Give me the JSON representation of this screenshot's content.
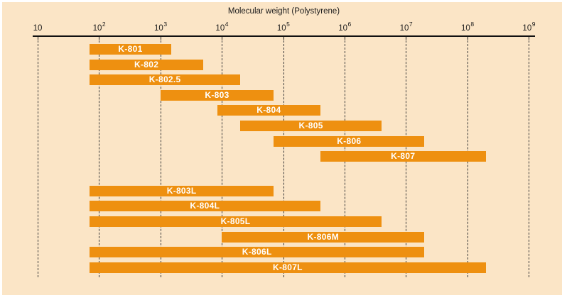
{
  "chart_data": {
    "type": "bar",
    "variant": "horizontal-range",
    "title": "Molecular weight (Polystyrene)",
    "x_axis": {
      "scale": "log10",
      "range": [
        10,
        1000000000
      ],
      "gridlines": "dashed-vertical",
      "ticks": [
        {
          "mantissa": "10",
          "exponent": "",
          "value": 10
        },
        {
          "mantissa": "10",
          "exponent": "2",
          "value": 100
        },
        {
          "mantissa": "10",
          "exponent": "3",
          "value": 1000
        },
        {
          "mantissa": "10",
          "exponent": "4",
          "value": 10000
        },
        {
          "mantissa": "10",
          "exponent": "5",
          "value": 100000
        },
        {
          "mantissa": "10",
          "exponent": "6",
          "value": 1000000
        },
        {
          "mantissa": "10",
          "exponent": "7",
          "value": 10000000
        },
        {
          "mantissa": "10",
          "exponent": "8",
          "value": 100000000
        },
        {
          "mantissa": "10",
          "exponent": "9",
          "value": 1000000000
        }
      ]
    },
    "groups": [
      {
        "name": "upper-group",
        "bars": [
          {
            "label": "K-801",
            "mw_min": 70,
            "mw_max": 1500
          },
          {
            "label": "K-802",
            "mw_min": 70,
            "mw_max": 5000
          },
          {
            "label": "K-802.5",
            "mw_min": 70,
            "mw_max": 20000
          },
          {
            "label": "K-803",
            "mw_min": 1000,
            "mw_max": 70000
          },
          {
            "label": "K-804",
            "mw_min": 8500,
            "mw_max": 400000
          },
          {
            "label": "K-805",
            "mw_min": 20000,
            "mw_max": 4000000
          },
          {
            "label": "K-806",
            "mw_min": 70000,
            "mw_max": 20000000
          },
          {
            "label": "K-807",
            "mw_min": 400000,
            "mw_max": 200000000
          }
        ]
      },
      {
        "name": "lower-group",
        "bars": [
          {
            "label": "K-803L",
            "mw_min": 70,
            "mw_max": 70000
          },
          {
            "label": "K-804L",
            "mw_min": 70,
            "mw_max": 400000
          },
          {
            "label": "K-805L",
            "mw_min": 70,
            "mw_max": 4000000
          },
          {
            "label": "K-806M",
            "mw_min": 10000,
            "mw_max": 20000000
          },
          {
            "label": "K-806L",
            "mw_min": 70,
            "mw_max": 20000000
          },
          {
            "label": "K-807L",
            "mw_min": 70,
            "mw_max": 200000000
          }
        ]
      }
    ],
    "colors": {
      "background": "#fbe5c6",
      "bar": "#ee9010",
      "bar_label": "#ffffff",
      "axis": "#111111",
      "tick_text": "#1a1a1a"
    }
  }
}
